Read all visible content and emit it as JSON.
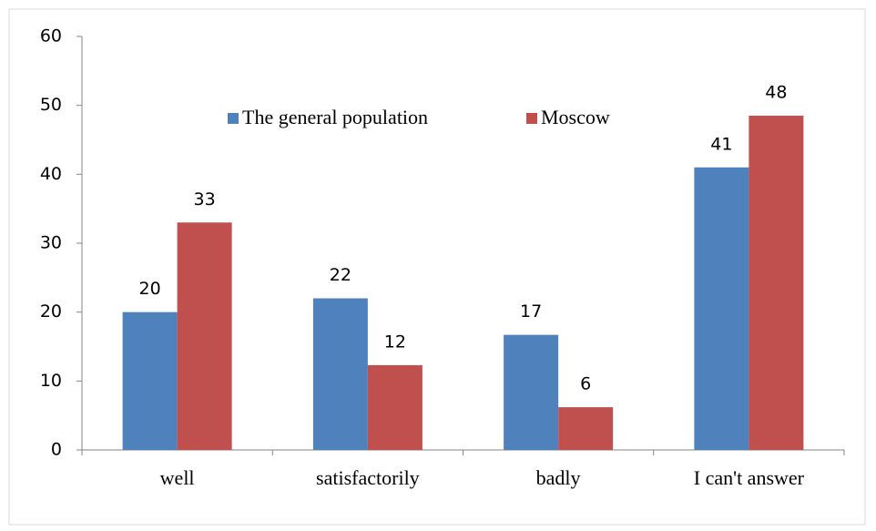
{
  "chart_data": {
    "type": "bar",
    "categories": [
      "well",
      "satisfactorily",
      "badly",
      "I can't answer"
    ],
    "series": [
      {
        "name": "The general population",
        "color": "#4f81bd",
        "values": [
          20,
          22,
          16.7,
          41
        ],
        "value_labels": [
          "20",
          "22",
          "17",
          "41"
        ]
      },
      {
        "name": "Moscow",
        "color": "#c0504d",
        "values": [
          33,
          12.3,
          6.2,
          48.5
        ],
        "value_labels": [
          "33",
          "12",
          "6",
          "48"
        ]
      }
    ],
    "ylim": [
      0,
      60
    ],
    "yticks": [
      0,
      10,
      20,
      30,
      40,
      50,
      60
    ],
    "legend": "top"
  }
}
